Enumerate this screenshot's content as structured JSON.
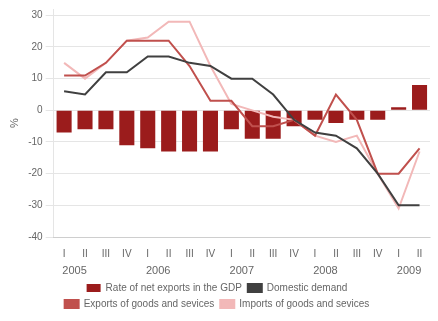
{
  "chart_data": {
    "type": "bar",
    "categories": [
      "I",
      "II",
      "III",
      "IV",
      "I",
      "II",
      "III",
      "IV",
      "I",
      "II",
      "III",
      "IV",
      "I",
      "II",
      "III",
      "IV",
      "I",
      "II"
    ],
    "series": [
      {
        "name": "Rate of net exports in the GDP",
        "type": "bar",
        "color": "#9b1c1c",
        "values": [
          -7,
          -6,
          -6,
          -11,
          -12,
          -13,
          -13,
          -13,
          -6,
          -9,
          -9,
          -5,
          -3,
          -4,
          -3,
          -3,
          1,
          8
        ]
      },
      {
        "name": "Domestic demand",
        "type": "line",
        "color": "#404040",
        "values": [
          6,
          5,
          12,
          12,
          17,
          17,
          15,
          14,
          10,
          10,
          5,
          -3,
          -7,
          -8,
          -12,
          -20,
          -30,
          -30
        ]
      },
      {
        "name": "Exports of goods and sevices",
        "type": "line",
        "color": "#c0504d",
        "values": [
          11,
          11,
          15,
          22,
          22,
          22,
          14,
          3,
          3,
          -5,
          -5,
          -3,
          -8,
          5,
          -3,
          -20,
          -20,
          -12
        ]
      },
      {
        "name": "Imports of goods and sevices",
        "type": "line",
        "color": "#f2b8b8",
        "values": [
          15,
          10,
          15,
          22,
          23,
          28,
          28,
          14,
          2,
          0,
          -2,
          -3,
          -8,
          -10,
          -8,
          -20,
          -31,
          -13
        ]
      }
    ],
    "ylabel": "%",
    "ylim": [
      -40,
      32
    ],
    "yticks": [
      -40,
      -30,
      -20,
      -10,
      0,
      10,
      20,
      30
    ],
    "grid": true,
    "legend": "bottom",
    "annotations": [
      {
        "text": "2005",
        "x": 0.5
      },
      {
        "text": "2006",
        "x": 4.5
      },
      {
        "text": "2007",
        "x": 8.5
      },
      {
        "text": "2008",
        "x": 12.5
      },
      {
        "text": "2009",
        "x": 16.5
      }
    ]
  }
}
